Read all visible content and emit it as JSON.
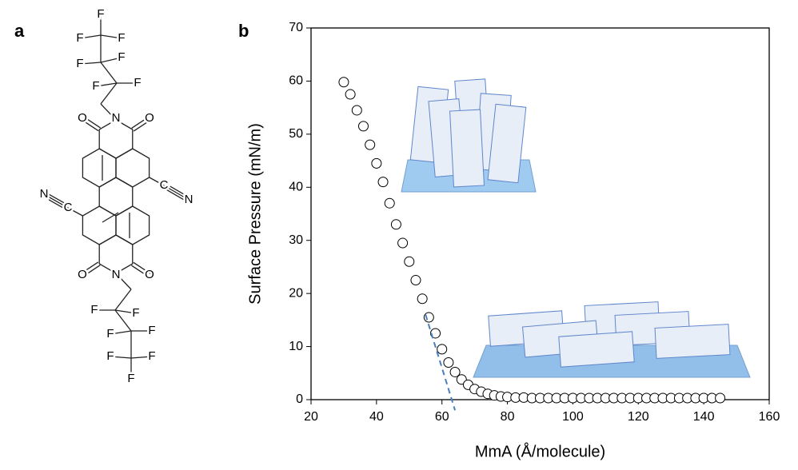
{
  "structure": {
    "panel_label": "a",
    "atoms": [
      "F",
      "F",
      "F",
      "F",
      "F",
      "F",
      "F",
      "O",
      "N",
      "O",
      "C",
      "N",
      "C",
      "N",
      "O",
      "N",
      "O",
      "F",
      "F",
      "F",
      "F",
      "F",
      "F",
      "F"
    ]
  },
  "chart_data": {
    "type": "scatter",
    "panel_label": "b",
    "x_label": "MmA (Å/molecule)",
    "y_label": "Surface Pressure (mN/m)",
    "x": [
      30,
      32,
      34,
      36,
      38,
      40,
      42,
      44,
      46,
      48,
      50,
      52,
      54,
      56,
      58,
      60,
      62,
      64,
      66,
      68,
      70,
      72,
      74,
      76,
      78,
      80,
      82.5,
      85,
      87.5,
      90,
      92.5,
      95,
      97.5,
      100,
      102.5,
      105,
      107.5,
      110,
      112.5,
      115,
      117.5,
      120,
      122.5,
      125,
      127.5,
      130,
      132.5,
      135,
      137.5,
      140,
      142.5,
      145
    ],
    "values": [
      59.8,
      57.5,
      54.5,
      51.5,
      48,
      44.5,
      41,
      37,
      33,
      29.5,
      26,
      22.5,
      19,
      15.5,
      12.5,
      9.5,
      7,
      5.2,
      3.8,
      2.8,
      2,
      1.5,
      1.1,
      0.8,
      0.6,
      0.5,
      0.4,
      0.4,
      0.3,
      0.3,
      0.3,
      0.3,
      0.3,
      0.3,
      0.3,
      0.3,
      0.3,
      0.3,
      0.3,
      0.3,
      0.3,
      0.3,
      0.3,
      0.3,
      0.3,
      0.3,
      0.3,
      0.3,
      0.3,
      0.3,
      0.3,
      0.3
    ],
    "color": "#000000",
    "fit": {
      "x": [
        55,
        64
      ],
      "values": [
        16,
        -2
      ],
      "color": "#4a7ebb"
    },
    "xlim": [
      20,
      160
    ],
    "xticks": [
      20,
      40,
      60,
      80,
      100,
      120,
      140,
      160
    ],
    "ylim": [
      0,
      70
    ],
    "yticks": [
      0,
      10,
      20,
      30,
      40,
      50,
      60,
      70
    ]
  }
}
